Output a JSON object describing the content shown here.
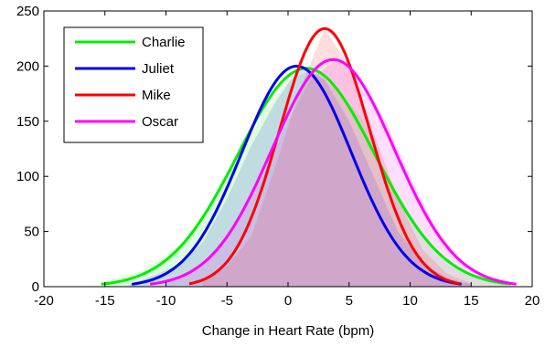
{
  "chart_data": {
    "type": "area",
    "title": "",
    "xlabel": "Change in Heart Rate (bpm)",
    "ylabel": "",
    "xlim": [
      -20,
      20
    ],
    "ylim": [
      0,
      250
    ],
    "xticks": [
      -20,
      -15,
      -10,
      -5,
      0,
      5,
      10,
      15,
      20
    ],
    "yticks": [
      0,
      50,
      100,
      150,
      200,
      250
    ],
    "xtick_labels": [
      "-20",
      "-15",
      "-10",
      "-5",
      "0",
      "5",
      "10",
      "15",
      "20"
    ],
    "ytick_labels": [
      "0",
      "50",
      "100",
      "150",
      "200",
      "250"
    ],
    "grid": false,
    "legend_position": "top-left",
    "series": [
      {
        "name": "Charlie",
        "color": "#00ee00",
        "fit": {
          "mean": 1.5,
          "sd": 5.6,
          "peak": 198
        },
        "x": [
          -15,
          -12,
          -10,
          -8,
          -6,
          -4,
          -2,
          0,
          2,
          4,
          6,
          8,
          10,
          12,
          14,
          16,
          18
        ],
        "y": [
          5,
          14,
          28,
          45,
          82,
          118,
          158,
          187,
          197,
          178,
          154,
          105,
          66,
          34,
          16,
          6,
          2
        ]
      },
      {
        "name": "Juliet",
        "color": "#0000ee",
        "fit": {
          "mean": 0.7,
          "sd": 4.5,
          "peak": 200
        },
        "x": [
          -13,
          -11,
          -9,
          -7,
          -5,
          -3,
          -1,
          1,
          3,
          5,
          7,
          9,
          11,
          13,
          15
        ],
        "y": [
          2,
          10,
          20,
          40,
          80,
          128,
          168,
          200,
          188,
          150,
          100,
          50,
          22,
          8,
          2
        ]
      },
      {
        "name": "Mike",
        "color": "#ff0000",
        "fit": {
          "mean": 3.0,
          "sd": 3.7,
          "peak": 234
        },
        "x": [
          -7,
          -5,
          -3,
          -1,
          1,
          3,
          5,
          7,
          9,
          11,
          13,
          15
        ],
        "y": [
          4,
          18,
          46,
          110,
          180,
          234,
          200,
          140,
          80,
          34,
          12,
          3
        ]
      },
      {
        "name": "Oscar",
        "color": "#ff00ff",
        "fit": {
          "mean": 3.7,
          "sd": 5.0,
          "peak": 206
        },
        "x": [
          -10,
          -8,
          -6,
          -4,
          -2,
          0,
          2,
          4,
          6,
          8,
          10,
          12,
          14,
          16,
          18
        ],
        "y": [
          4,
          12,
          30,
          60,
          104,
          150,
          190,
          206,
          188,
          150,
          100,
          56,
          24,
          8,
          2
        ]
      }
    ]
  }
}
